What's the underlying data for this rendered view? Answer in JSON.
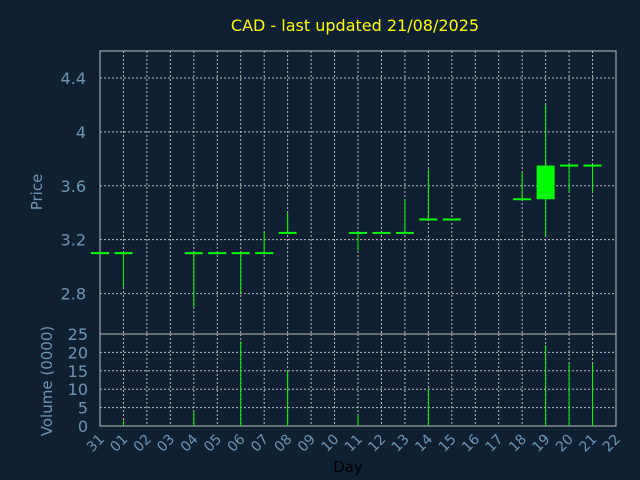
{
  "chart_data": {
    "title": "CAD - last updated 21/08/2025",
    "price_panel": {
      "type": "candlestick",
      "ylabel": "Price",
      "ylim": [
        2.5,
        4.6
      ],
      "yticks": [
        2.8,
        3.2,
        3.6,
        4,
        4.4
      ],
      "ytick_labels": [
        "2.8",
        "3.2",
        "3.6",
        "4",
        "4.4"
      ],
      "candles": [
        {
          "day": "31",
          "open": 3.1,
          "high": 3.1,
          "low": 3.1,
          "close": 3.1
        },
        {
          "day": "01",
          "open": 3.1,
          "high": 3.1,
          "low": 2.85,
          "close": 3.1
        },
        {
          "day": "04",
          "open": 3.1,
          "high": 3.1,
          "low": 2.7,
          "close": 3.1
        },
        {
          "day": "05",
          "open": 3.1,
          "high": 3.1,
          "low": 3.1,
          "close": 3.1
        },
        {
          "day": "06",
          "open": 3.1,
          "high": 3.1,
          "low": 2.8,
          "close": 3.1
        },
        {
          "day": "07",
          "open": 3.1,
          "high": 3.26,
          "low": 3.1,
          "close": 3.1
        },
        {
          "day": "08",
          "open": 3.25,
          "high": 3.4,
          "low": 3.25,
          "close": 3.25
        },
        {
          "day": "11",
          "open": 3.25,
          "high": 3.25,
          "low": 3.12,
          "close": 3.25
        },
        {
          "day": "12",
          "open": 3.25,
          "high": 3.25,
          "low": 3.25,
          "close": 3.25
        },
        {
          "day": "13",
          "open": 3.25,
          "high": 3.5,
          "low": 3.25,
          "close": 3.25
        },
        {
          "day": "14",
          "open": 3.35,
          "high": 3.72,
          "low": 3.35,
          "close": 3.35
        },
        {
          "day": "15",
          "open": 3.35,
          "high": 3.35,
          "low": 3.35,
          "close": 3.35
        },
        {
          "day": "18",
          "open": 3.5,
          "high": 3.7,
          "low": 3.5,
          "close": 3.5
        },
        {
          "day": "19",
          "open": 3.5,
          "high": 4.2,
          "low": 3.22,
          "close": 3.75
        },
        {
          "day": "20",
          "open": 3.75,
          "high": 3.75,
          "low": 3.55,
          "close": 3.75
        },
        {
          "day": "21",
          "open": 3.75,
          "high": 3.75,
          "low": 3.55,
          "close": 3.75
        }
      ]
    },
    "volume_panel": {
      "type": "bar",
      "ylabel": "Volume (0000)",
      "ylim": [
        0,
        25
      ],
      "yticks": [
        0,
        5,
        10,
        15,
        20,
        25
      ],
      "ytick_labels": [
        "0",
        "5",
        "10",
        "15",
        "20",
        "25"
      ],
      "bars": [
        {
          "day": "01",
          "value": 1.5
        },
        {
          "day": "04",
          "value": 4
        },
        {
          "day": "06",
          "value": 23
        },
        {
          "day": "08",
          "value": 15
        },
        {
          "day": "11",
          "value": 3
        },
        {
          "day": "14",
          "value": 10
        },
        {
          "day": "19",
          "value": 22
        },
        {
          "day": "20",
          "value": 17
        },
        {
          "day": "21",
          "value": 17
        }
      ]
    },
    "x_axis": {
      "xlabel": "Day",
      "days": [
        "31",
        "01",
        "02",
        "03",
        "04",
        "05",
        "06",
        "07",
        "08",
        "09",
        "10",
        "11",
        "12",
        "13",
        "14",
        "15",
        "16",
        "17",
        "18",
        "19",
        "20",
        "21",
        "22"
      ]
    },
    "grid": true,
    "colors": {
      "background": "#0f2032",
      "candle": "#00ff00",
      "volume": "#00ff00",
      "title": "#ffff00",
      "tick_text": "#6f95b5",
      "grid": "#bcbcbc"
    }
  }
}
